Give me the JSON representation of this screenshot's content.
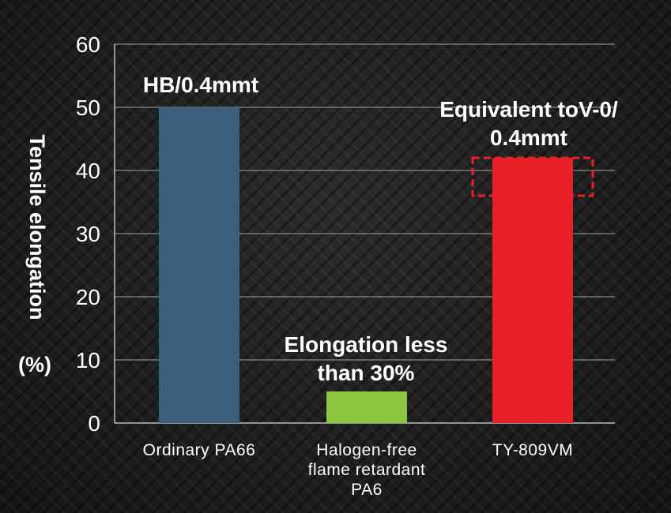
{
  "chart_data": {
    "type": "bar",
    "categories": [
      [
        "Ordinary PA66"
      ],
      [
        "Halogen-free",
        "flame retardant",
        "PA6"
      ],
      [
        "TY-809VM"
      ]
    ],
    "values": [
      50,
      5,
      42
    ],
    "colors": [
      "#3b5f7d",
      "#8cc63f",
      "#e8202a"
    ],
    "ylabel": "Tensile elongation",
    "ylabel_unit": "(%)",
    "ylim": [
      0,
      60
    ],
    "yticks": [
      0,
      10,
      20,
      30,
      40,
      50,
      60
    ],
    "grid": true,
    "annotations": [
      [
        "HB/0.4mmt"
      ],
      [
        "Elongation less",
        "than 30%"
      ],
      [
        "Equivalent toV-0/",
        "0.4mmt"
      ]
    ],
    "dashed_highlight": {
      "bar_index": 2,
      "y_range": [
        36,
        42
      ],
      "color": "#e8202a"
    }
  }
}
